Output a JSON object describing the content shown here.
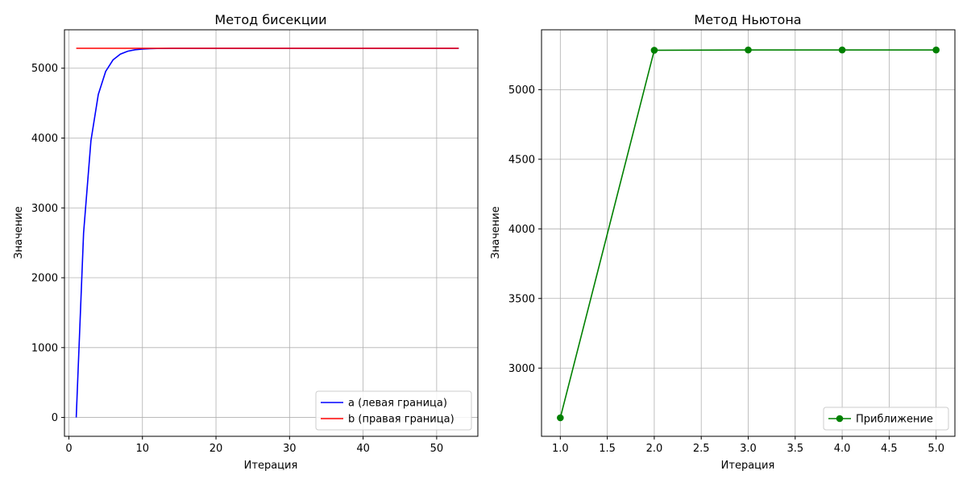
{
  "chart_data": [
    {
      "type": "line",
      "title": "Метод бисекции",
      "xlabel": "Итерация",
      "ylabel": "Значение",
      "xlim": [
        -0.6,
        55.6
      ],
      "ylim": [
        -270,
        5550
      ],
      "xticks": [
        0,
        10,
        20,
        30,
        40,
        50
      ],
      "xtick_labels": [
        "0",
        "10",
        "20",
        "30",
        "40",
        "50"
      ],
      "yticks": [
        0,
        1000,
        2000,
        3000,
        4000,
        5000
      ],
      "ytick_labels": [
        "0",
        "1000",
        "2000",
        "3000",
        "4000",
        "5000"
      ],
      "grid": true,
      "legend_position": "lower-right",
      "series": [
        {
          "name": "a (левая граница)",
          "color": "#0000ff",
          "x": [
            1,
            2,
            3,
            4,
            5,
            6,
            7,
            8,
            9,
            10,
            11,
            12,
            13,
            14,
            15,
            16,
            17,
            18,
            19,
            20,
            21,
            22,
            23,
            24,
            25,
            26,
            27,
            28,
            29,
            30,
            31,
            32,
            33,
            34,
            35,
            36,
            37,
            38,
            39,
            40,
            41,
            42,
            43,
            44,
            45,
            46,
            47,
            48,
            49,
            50,
            51,
            52,
            53
          ],
          "values": [
            0,
            2642,
            3963,
            4624,
            4954,
            5119,
            5202,
            5243,
            5264,
            5274,
            5279,
            5282,
            5283,
            5284,
            5284,
            5284,
            5284,
            5284,
            5284,
            5284,
            5284,
            5284,
            5284,
            5284,
            5284,
            5284,
            5284,
            5284,
            5284,
            5284,
            5284,
            5284,
            5284,
            5284,
            5284,
            5284,
            5284,
            5284,
            5284,
            5284,
            5284,
            5284,
            5284,
            5284,
            5284,
            5284,
            5284,
            5284,
            5284,
            5284,
            5284,
            5284,
            5284
          ]
        },
        {
          "name": "b (правая граница)",
          "color": "#ff0000",
          "x": [
            1,
            53
          ],
          "values": [
            5285,
            5285
          ]
        }
      ]
    },
    {
      "type": "line",
      "title": "Метод Ньютона",
      "xlabel": "Итерация",
      "ylabel": "Значение",
      "xlim": [
        0.8,
        5.2
      ],
      "ylim": [
        2510,
        5430
      ],
      "xticks": [
        1.0,
        1.5,
        2.0,
        2.5,
        3.0,
        3.5,
        4.0,
        4.5,
        5.0
      ],
      "xtick_labels": [
        "1.0",
        "1.5",
        "2.0",
        "2.5",
        "3.0",
        "3.5",
        "4.0",
        "4.5",
        "5.0"
      ],
      "yticks": [
        3000,
        3500,
        4000,
        4500,
        5000
      ],
      "ytick_labels": [
        "3000",
        "3500",
        "4000",
        "4500",
        "5000"
      ],
      "grid": true,
      "legend_position": "lower-right",
      "series": [
        {
          "name": "Приближение",
          "color": "#008000",
          "marker": "circle",
          "x": [
            1,
            2,
            3,
            4,
            5
          ],
          "values": [
            2643,
            5283,
            5285,
            5285,
            5285
          ]
        }
      ]
    }
  ]
}
